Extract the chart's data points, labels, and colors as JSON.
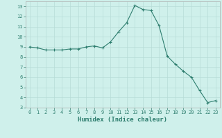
{
  "x": [
    0,
    1,
    2,
    3,
    4,
    5,
    6,
    7,
    8,
    9,
    10,
    11,
    12,
    13,
    14,
    15,
    16,
    17,
    18,
    19,
    20,
    21,
    22,
    23
  ],
  "y": [
    9.0,
    8.9,
    8.7,
    8.7,
    8.7,
    8.8,
    8.8,
    9.0,
    9.1,
    8.9,
    9.5,
    10.5,
    11.4,
    13.1,
    12.7,
    12.6,
    11.1,
    8.1,
    7.3,
    6.6,
    6.0,
    4.7,
    3.5,
    3.7
  ],
  "line_color": "#2d7d6e",
  "marker": "+",
  "marker_size": 3,
  "bg_color": "#cff0eb",
  "grid_color": "#b8dcd7",
  "xlabel": "Humidex (Indice chaleur)",
  "ylim": [
    3,
    13.5
  ],
  "xlim": [
    -0.5,
    23.5
  ],
  "yticks": [
    3,
    4,
    5,
    6,
    7,
    8,
    9,
    10,
    11,
    12,
    13
  ],
  "xticks": [
    0,
    1,
    2,
    3,
    4,
    5,
    6,
    7,
    8,
    9,
    10,
    11,
    12,
    13,
    14,
    15,
    16,
    17,
    18,
    19,
    20,
    21,
    22,
    23
  ],
  "tick_fontsize": 5.0,
  "xlabel_fontsize": 6.5,
  "line_width": 0.8,
  "marker_edge_width": 0.8
}
